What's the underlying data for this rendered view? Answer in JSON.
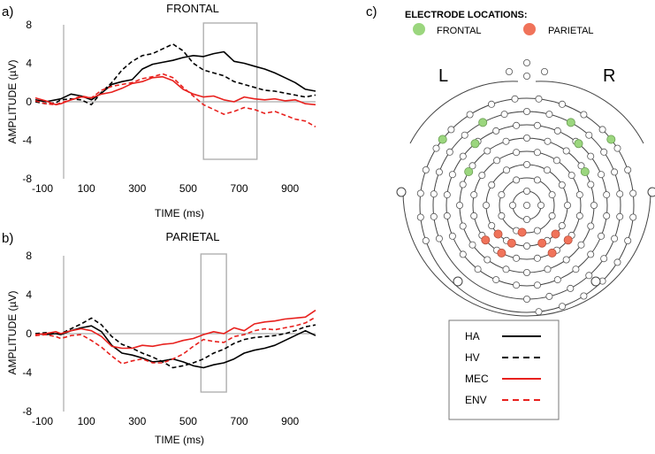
{
  "panels": {
    "a": {
      "letter": "a)"
    },
    "b": {
      "letter": "b)"
    },
    "c": {
      "letter": "c)"
    }
  },
  "chart_data": [
    {
      "type": "line",
      "id": "frontal",
      "title": "FRONTAL",
      "xlabel": "TIME (ms)",
      "ylabel": "AMPLITUDE (µV)",
      "xlim": [
        -100,
        1000
      ],
      "ylim": [
        -8,
        8
      ],
      "xticks": [
        -100,
        100,
        300,
        500,
        700,
        900
      ],
      "yticks": [
        8,
        4,
        0,
        -4,
        -8
      ],
      "highlight_window": [
        560,
        770
      ],
      "series": [
        {
          "name": "HA",
          "color": "#000000",
          "dash": "solid",
          "points": [
            [
              -100,
              0.2
            ],
            [
              -60,
              0.0
            ],
            [
              -20,
              0.2
            ],
            [
              0,
              0.3
            ],
            [
              40,
              0.8
            ],
            [
              80,
              0.6
            ],
            [
              120,
              0.2
            ],
            [
              160,
              0.9
            ],
            [
              200,
              1.8
            ],
            [
              240,
              2.1
            ],
            [
              280,
              2.3
            ],
            [
              320,
              3.4
            ],
            [
              360,
              3.9
            ],
            [
              400,
              4.1
            ],
            [
              440,
              4.3
            ],
            [
              480,
              4.6
            ],
            [
              520,
              4.8
            ],
            [
              560,
              4.7
            ],
            [
              600,
              5.0
            ],
            [
              640,
              5.2
            ],
            [
              680,
              4.2
            ],
            [
              720,
              4.0
            ],
            [
              760,
              3.7
            ],
            [
              800,
              3.4
            ],
            [
              840,
              3.0
            ],
            [
              880,
              2.5
            ],
            [
              920,
              2.0
            ],
            [
              960,
              1.3
            ],
            [
              1000,
              1.1
            ]
          ]
        },
        {
          "name": "HV",
          "color": "#000000",
          "dash": "dashed",
          "points": [
            [
              -100,
              0.0
            ],
            [
              -60,
              -0.2
            ],
            [
              -20,
              -0.1
            ],
            [
              0,
              0.2
            ],
            [
              40,
              0.3
            ],
            [
              80,
              0.2
            ],
            [
              120,
              -0.3
            ],
            [
              160,
              1.0
            ],
            [
              200,
              2.0
            ],
            [
              240,
              3.3
            ],
            [
              280,
              4.2
            ],
            [
              320,
              4.8
            ],
            [
              360,
              5.0
            ],
            [
              400,
              5.5
            ],
            [
              440,
              6.0
            ],
            [
              480,
              5.3
            ],
            [
              520,
              4.0
            ],
            [
              560,
              3.3
            ],
            [
              600,
              3.0
            ],
            [
              640,
              2.7
            ],
            [
              680,
              2.1
            ],
            [
              720,
              1.8
            ],
            [
              760,
              1.5
            ],
            [
              800,
              1.2
            ],
            [
              840,
              1.1
            ],
            [
              880,
              0.9
            ],
            [
              920,
              0.7
            ],
            [
              960,
              0.5
            ],
            [
              1000,
              0.7
            ]
          ]
        },
        {
          "name": "MEC",
          "color": "#e8211e",
          "dash": "solid",
          "points": [
            [
              -100,
              0.4
            ],
            [
              -60,
              0.1
            ],
            [
              -20,
              -0.3
            ],
            [
              0,
              -0.2
            ],
            [
              40,
              0.2
            ],
            [
              80,
              0.5
            ],
            [
              120,
              0.4
            ],
            [
              160,
              0.8
            ],
            [
              200,
              1.0
            ],
            [
              240,
              1.4
            ],
            [
              280,
              1.9
            ],
            [
              320,
              2.1
            ],
            [
              360,
              2.5
            ],
            [
              400,
              2.6
            ],
            [
              440,
              2.2
            ],
            [
              480,
              1.3
            ],
            [
              520,
              0.8
            ],
            [
              560,
              0.5
            ],
            [
              600,
              0.6
            ],
            [
              640,
              0.2
            ],
            [
              680,
              0.0
            ],
            [
              720,
              0.5
            ],
            [
              760,
              0.3
            ],
            [
              800,
              0.2
            ],
            [
              840,
              0.3
            ],
            [
              880,
              0.1
            ],
            [
              920,
              0.2
            ],
            [
              960,
              -0.2
            ],
            [
              1000,
              -0.3
            ]
          ]
        },
        {
          "name": "ENV",
          "color": "#e8211e",
          "dash": "dashed",
          "points": [
            [
              -100,
              0.1
            ],
            [
              -60,
              -0.2
            ],
            [
              -20,
              -0.3
            ],
            [
              0,
              -0.1
            ],
            [
              40,
              0.2
            ],
            [
              80,
              0.6
            ],
            [
              120,
              0.4
            ],
            [
              160,
              1.2
            ],
            [
              200,
              1.6
            ],
            [
              240,
              1.8
            ],
            [
              280,
              2.0
            ],
            [
              320,
              2.4
            ],
            [
              360,
              2.6
            ],
            [
              400,
              2.9
            ],
            [
              440,
              2.5
            ],
            [
              480,
              1.5
            ],
            [
              520,
              0.6
            ],
            [
              560,
              -0.3
            ],
            [
              600,
              -0.8
            ],
            [
              640,
              -1.3
            ],
            [
              680,
              -1.0
            ],
            [
              720,
              -0.6
            ],
            [
              760,
              -0.8
            ],
            [
              800,
              -1.2
            ],
            [
              840,
              -1.0
            ],
            [
              880,
              -1.4
            ],
            [
              920,
              -1.8
            ],
            [
              960,
              -2.0
            ],
            [
              1000,
              -2.6
            ]
          ]
        }
      ]
    },
    {
      "type": "line",
      "id": "parietal",
      "title": "PARIETAL",
      "xlabel": "TIME (ms)",
      "ylabel": "AMPLITUDE (µV)",
      "xlim": [
        -100,
        1000
      ],
      "ylim": [
        -8,
        8
      ],
      "xticks": [
        -100,
        100,
        300,
        500,
        700,
        900
      ],
      "yticks": [
        8,
        4,
        0,
        -4,
        -8
      ],
      "highlight_window": [
        550,
        650
      ],
      "series": [
        {
          "name": "HA",
          "color": "#000000",
          "dash": "solid",
          "points": [
            [
              -100,
              0.0
            ],
            [
              -60,
              -0.1
            ],
            [
              -20,
              0.0
            ],
            [
              0,
              -0.1
            ],
            [
              40,
              0.3
            ],
            [
              80,
              0.6
            ],
            [
              120,
              0.8
            ],
            [
              160,
              0.2
            ],
            [
              200,
              -1.2
            ],
            [
              240,
              -2.0
            ],
            [
              280,
              -2.2
            ],
            [
              320,
              -2.5
            ],
            [
              360,
              -2.9
            ],
            [
              400,
              -2.8
            ],
            [
              440,
              -2.6
            ],
            [
              480,
              -2.9
            ],
            [
              520,
              -3.3
            ],
            [
              560,
              -3.5
            ],
            [
              600,
              -3.2
            ],
            [
              640,
              -3.0
            ],
            [
              680,
              -2.6
            ],
            [
              720,
              -2.0
            ],
            [
              760,
              -1.7
            ],
            [
              800,
              -1.5
            ],
            [
              840,
              -1.2
            ],
            [
              880,
              -0.7
            ],
            [
              920,
              -0.2
            ],
            [
              960,
              0.3
            ],
            [
              1000,
              -0.2
            ]
          ]
        },
        {
          "name": "HV",
          "color": "#000000",
          "dash": "dashed",
          "points": [
            [
              -100,
              0.0
            ],
            [
              -60,
              0.1
            ],
            [
              -20,
              0.0
            ],
            [
              0,
              0.0
            ],
            [
              40,
              0.5
            ],
            [
              80,
              1.0
            ],
            [
              120,
              1.6
            ],
            [
              160,
              0.9
            ],
            [
              200,
              -0.3
            ],
            [
              240,
              -1.1
            ],
            [
              280,
              -1.5
            ],
            [
              320,
              -2.0
            ],
            [
              360,
              -2.4
            ],
            [
              400,
              -2.9
            ],
            [
              440,
              -3.5
            ],
            [
              480,
              -3.3
            ],
            [
              520,
              -3.0
            ],
            [
              560,
              -2.6
            ],
            [
              600,
              -2.0
            ],
            [
              640,
              -1.6
            ],
            [
              680,
              -1.0
            ],
            [
              720,
              -0.6
            ],
            [
              760,
              -0.4
            ],
            [
              800,
              -0.3
            ],
            [
              840,
              -0.2
            ],
            [
              880,
              0.0
            ],
            [
              920,
              0.3
            ],
            [
              960,
              0.7
            ],
            [
              1000,
              0.9
            ]
          ]
        },
        {
          "name": "MEC",
          "color": "#e8211e",
          "dash": "solid",
          "points": [
            [
              -100,
              -0.1
            ],
            [
              -60,
              0.0
            ],
            [
              -20,
              0.2
            ],
            [
              0,
              0.0
            ],
            [
              40,
              0.3
            ],
            [
              80,
              0.5
            ],
            [
              120,
              0.3
            ],
            [
              160,
              -0.3
            ],
            [
              200,
              -1.3
            ],
            [
              240,
              -1.5
            ],
            [
              280,
              -1.5
            ],
            [
              320,
              -1.2
            ],
            [
              360,
              -1.3
            ],
            [
              400,
              -1.1
            ],
            [
              440,
              -1.0
            ],
            [
              480,
              -0.7
            ],
            [
              520,
              -0.5
            ],
            [
              560,
              -0.1
            ],
            [
              600,
              0.2
            ],
            [
              640,
              0.0
            ],
            [
              680,
              0.6
            ],
            [
              720,
              0.3
            ],
            [
              760,
              1.0
            ],
            [
              800,
              1.2
            ],
            [
              840,
              1.3
            ],
            [
              880,
              1.5
            ],
            [
              920,
              1.6
            ],
            [
              960,
              1.7
            ],
            [
              1000,
              2.4
            ]
          ]
        },
        {
          "name": "ENV",
          "color": "#e8211e",
          "dash": "dashed",
          "points": [
            [
              -100,
              -0.2
            ],
            [
              -60,
              -0.1
            ],
            [
              -20,
              -0.3
            ],
            [
              0,
              -0.5
            ],
            [
              40,
              -0.2
            ],
            [
              80,
              -0.1
            ],
            [
              120,
              -0.7
            ],
            [
              160,
              -1.4
            ],
            [
              200,
              -2.3
            ],
            [
              240,
              -3.1
            ],
            [
              280,
              -2.8
            ],
            [
              320,
              -2.6
            ],
            [
              360,
              -3.0
            ],
            [
              400,
              -3.0
            ],
            [
              440,
              -2.6
            ],
            [
              480,
              -2.1
            ],
            [
              520,
              -1.3
            ],
            [
              560,
              -0.6
            ],
            [
              600,
              -0.8
            ],
            [
              640,
              -0.9
            ],
            [
              680,
              -0.3
            ],
            [
              720,
              -0.1
            ],
            [
              760,
              0.3
            ],
            [
              800,
              0.5
            ],
            [
              840,
              0.4
            ],
            [
              880,
              0.6
            ],
            [
              920,
              0.8
            ],
            [
              960,
              1.1
            ],
            [
              1000,
              1.7
            ]
          ]
        }
      ]
    }
  ],
  "electrodes": {
    "title": "ELECTRODE LOCATIONS:",
    "groups": [
      {
        "label": "FRONTAL",
        "color": "#9bd67e"
      },
      {
        "label": "PARIETAL",
        "color": "#f0735a"
      }
    ],
    "left_label": "L",
    "right_label": "R"
  },
  "legend": [
    {
      "label": "HA",
      "color": "#000000",
      "dash": "solid"
    },
    {
      "label": "HV",
      "color": "#000000",
      "dash": "dashed"
    },
    {
      "label": "MEC",
      "color": "#e8211e",
      "dash": "solid"
    },
    {
      "label": "ENV",
      "color": "#e8211e",
      "dash": "dashed"
    }
  ]
}
